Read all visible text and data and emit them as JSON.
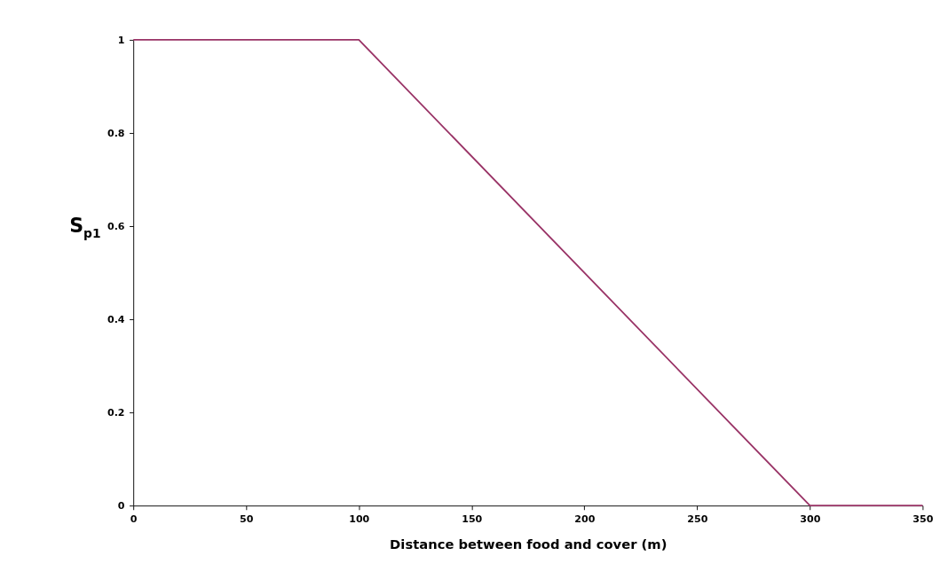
{
  "chart_data": {
    "type": "line",
    "xlabel": "Distance between food and cover (m)",
    "ylabel": "S$_{p1}$",
    "x": [
      0,
      100,
      300,
      350
    ],
    "series": [
      {
        "color": "#993366",
        "values": [
          1,
          1,
          0,
          0
        ]
      }
    ],
    "xlim": [
      0,
      350
    ],
    "xticks": [
      0,
      50,
      100,
      150,
      200,
      250,
      300,
      350
    ],
    "ylim": [
      0,
      1
    ],
    "yticks": [
      0,
      0.2,
      0.4,
      0.6,
      0.8,
      1
    ],
    "grid": false,
    "marker": "none",
    "line_style": "solid"
  }
}
